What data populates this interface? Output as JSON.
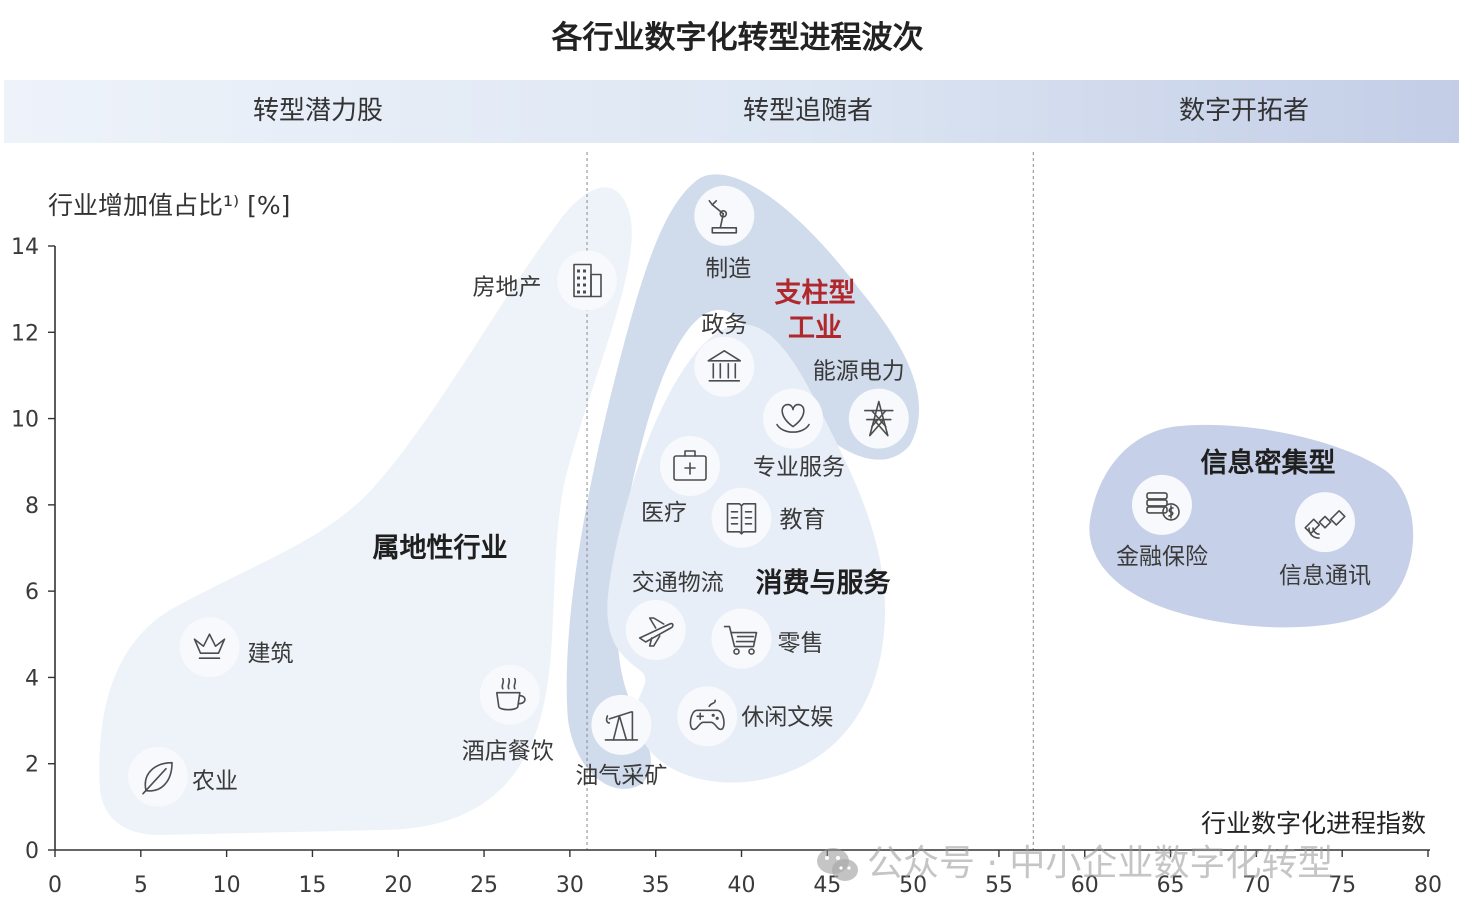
{
  "title": "各行业数字化转型进程波次",
  "bands": [
    {
      "key": "potential",
      "label": "转型潜力股"
    },
    {
      "key": "followers",
      "label": "转型追随者"
    },
    {
      "key": "pioneers",
      "label": "数字开拓者"
    }
  ],
  "groups": [
    {
      "key": "territorial",
      "label": "属地性行业",
      "color": "#1f1f1f"
    },
    {
      "key": "pillar",
      "label": "支柱型\n工业",
      "color": "#b1282c"
    },
    {
      "key": "consumer",
      "label": "消费与服务",
      "color": "#1f1f1f"
    },
    {
      "key": "info",
      "label": "信息密集型",
      "color": "#1f1f1f"
    }
  ],
  "watermark": "公众号 · 中小企业数字化转型",
  "colors": {
    "territorial_blob": "#edf3f9",
    "pillar_blob": "#d0dbec",
    "consumer_blob": "#e8eef7",
    "info_blob": "#c6d0e8",
    "bubble": "#f7f9fc",
    "icon": "#4d4d4d"
  },
  "chart_data": {
    "type": "scatter",
    "xlabel": "行业数字化进程指数",
    "ylabel": "行业增加值占比¹⁾ [%]",
    "xlim": [
      0,
      80
    ],
    "ylim": [
      0,
      14
    ],
    "xticks": [
      0,
      5,
      10,
      15,
      20,
      25,
      30,
      35,
      40,
      45,
      50,
      55,
      60,
      65,
      70,
      75,
      80
    ],
    "yticks": [
      0,
      2,
      4,
      6,
      8,
      10,
      12,
      14
    ],
    "dividers": [
      31,
      57
    ],
    "points": [
      {
        "label": "房地产",
        "x": 31,
        "y": 13.2,
        "icon": "building-icon",
        "group": "territorial"
      },
      {
        "label": "建筑",
        "x": 9,
        "y": 4.7,
        "icon": "crown-icon",
        "group": "territorial"
      },
      {
        "label": "酒店餐饮",
        "x": 26.5,
        "y": 3.6,
        "icon": "coffee-cup-icon",
        "group": "territorial"
      },
      {
        "label": "农业",
        "x": 6,
        "y": 1.7,
        "icon": "leaf-icon",
        "group": "territorial"
      },
      {
        "label": "制造",
        "x": 39,
        "y": 14.7,
        "icon": "robot-arm-icon",
        "group": "pillar"
      },
      {
        "label": "能源电力",
        "x": 48,
        "y": 10.0,
        "icon": "power-tower-icon",
        "group": "pillar"
      },
      {
        "label": "油气采矿",
        "x": 33,
        "y": 2.9,
        "icon": "oil-pump-icon",
        "group": "pillar"
      },
      {
        "label": "政务",
        "x": 39,
        "y": 11.2,
        "icon": "government-building-icon",
        "group": "consumer"
      },
      {
        "label": "专业服务",
        "x": 43,
        "y": 10.0,
        "icon": "heart-hands-icon",
        "group": "consumer"
      },
      {
        "label": "医疗",
        "x": 37,
        "y": 8.9,
        "icon": "medical-kit-icon",
        "group": "consumer"
      },
      {
        "label": "教育",
        "x": 40,
        "y": 7.7,
        "icon": "book-icon",
        "group": "consumer"
      },
      {
        "label": "交通物流",
        "x": 35,
        "y": 5.1,
        "icon": "airplane-icon",
        "group": "consumer"
      },
      {
        "label": "零售",
        "x": 40,
        "y": 4.9,
        "icon": "shopping-cart-icon",
        "group": "consumer"
      },
      {
        "label": "休闲文娱",
        "x": 38,
        "y": 3.1,
        "icon": "gamepad-icon",
        "group": "consumer"
      },
      {
        "label": "金融保险",
        "x": 64.5,
        "y": 8.0,
        "icon": "coins-icon",
        "group": "info"
      },
      {
        "label": "信息通讯",
        "x": 74,
        "y": 7.6,
        "icon": "satellite-icon",
        "group": "info"
      }
    ]
  }
}
